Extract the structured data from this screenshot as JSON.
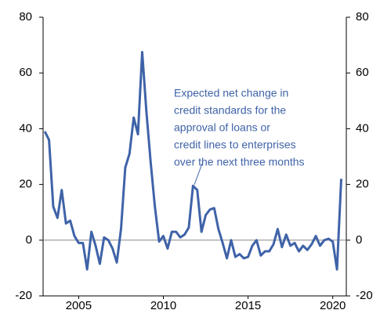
{
  "chart_data": {
    "type": "line",
    "x": [
      2003.0,
      2003.25,
      2003.5,
      2003.75,
      2004.0,
      2004.25,
      2004.5,
      2004.75,
      2005.0,
      2005.25,
      2005.5,
      2005.75,
      2006.0,
      2006.25,
      2006.5,
      2006.75,
      2007.0,
      2007.25,
      2007.5,
      2007.75,
      2008.0,
      2008.25,
      2008.5,
      2008.75,
      2009.0,
      2009.25,
      2009.5,
      2009.75,
      2010.0,
      2010.25,
      2010.5,
      2010.75,
      2011.0,
      2011.25,
      2011.5,
      2011.75,
      2012.0,
      2012.25,
      2012.5,
      2012.75,
      2013.0,
      2013.25,
      2013.5,
      2013.75,
      2014.0,
      2014.25,
      2014.5,
      2014.75,
      2015.0,
      2015.25,
      2015.5,
      2015.75,
      2016.0,
      2016.25,
      2016.5,
      2016.75,
      2017.0,
      2017.25,
      2017.5,
      2017.75,
      2018.0,
      2018.25,
      2018.5,
      2018.75,
      2019.0,
      2019.25,
      2019.5,
      2019.75,
      2020.0,
      2020.25,
      2020.5
    ],
    "series": [
      {
        "color": "#3f63a8",
        "values": [
          39,
          36,
          12,
          8,
          18,
          6,
          7,
          1.5,
          -1,
          -1,
          -10.5,
          3,
          -2,
          -8.5,
          1,
          0,
          -3,
          -8,
          4,
          26,
          31,
          44,
          38,
          67.5,
          46,
          28,
          12,
          -0.5,
          1.5,
          -3,
          3,
          3,
          1,
          2,
          4.5,
          19.5,
          18,
          3,
          9,
          11,
          11.5,
          4,
          -1,
          -6.5,
          0,
          -6,
          -5,
          -6.5,
          -6,
          -2,
          0,
          -5.5,
          -4,
          -4,
          -1.5,
          4,
          -2.5,
          2,
          -2,
          -1,
          -4,
          -2,
          -3.5,
          -1.5,
          1.5,
          -2,
          0,
          0.5,
          -0.5,
          -10.5,
          22
        ]
      }
    ],
    "xlim": [
      2002.9,
      2020.8
    ],
    "xticks": [
      2005,
      2010,
      2015,
      2020
    ],
    "ylim": [
      -20,
      80
    ],
    "yticks": [
      -20,
      0,
      20,
      40,
      60,
      80
    ],
    "y2lim": [
      -20,
      80
    ],
    "y2ticks": [
      -20,
      0,
      20,
      40,
      60,
      80
    ],
    "annotation": [
      "Expected net change in",
      "credit standards for the",
      "approval of loans or",
      "credit lines to enterprises",
      "over the next three months"
    ]
  }
}
